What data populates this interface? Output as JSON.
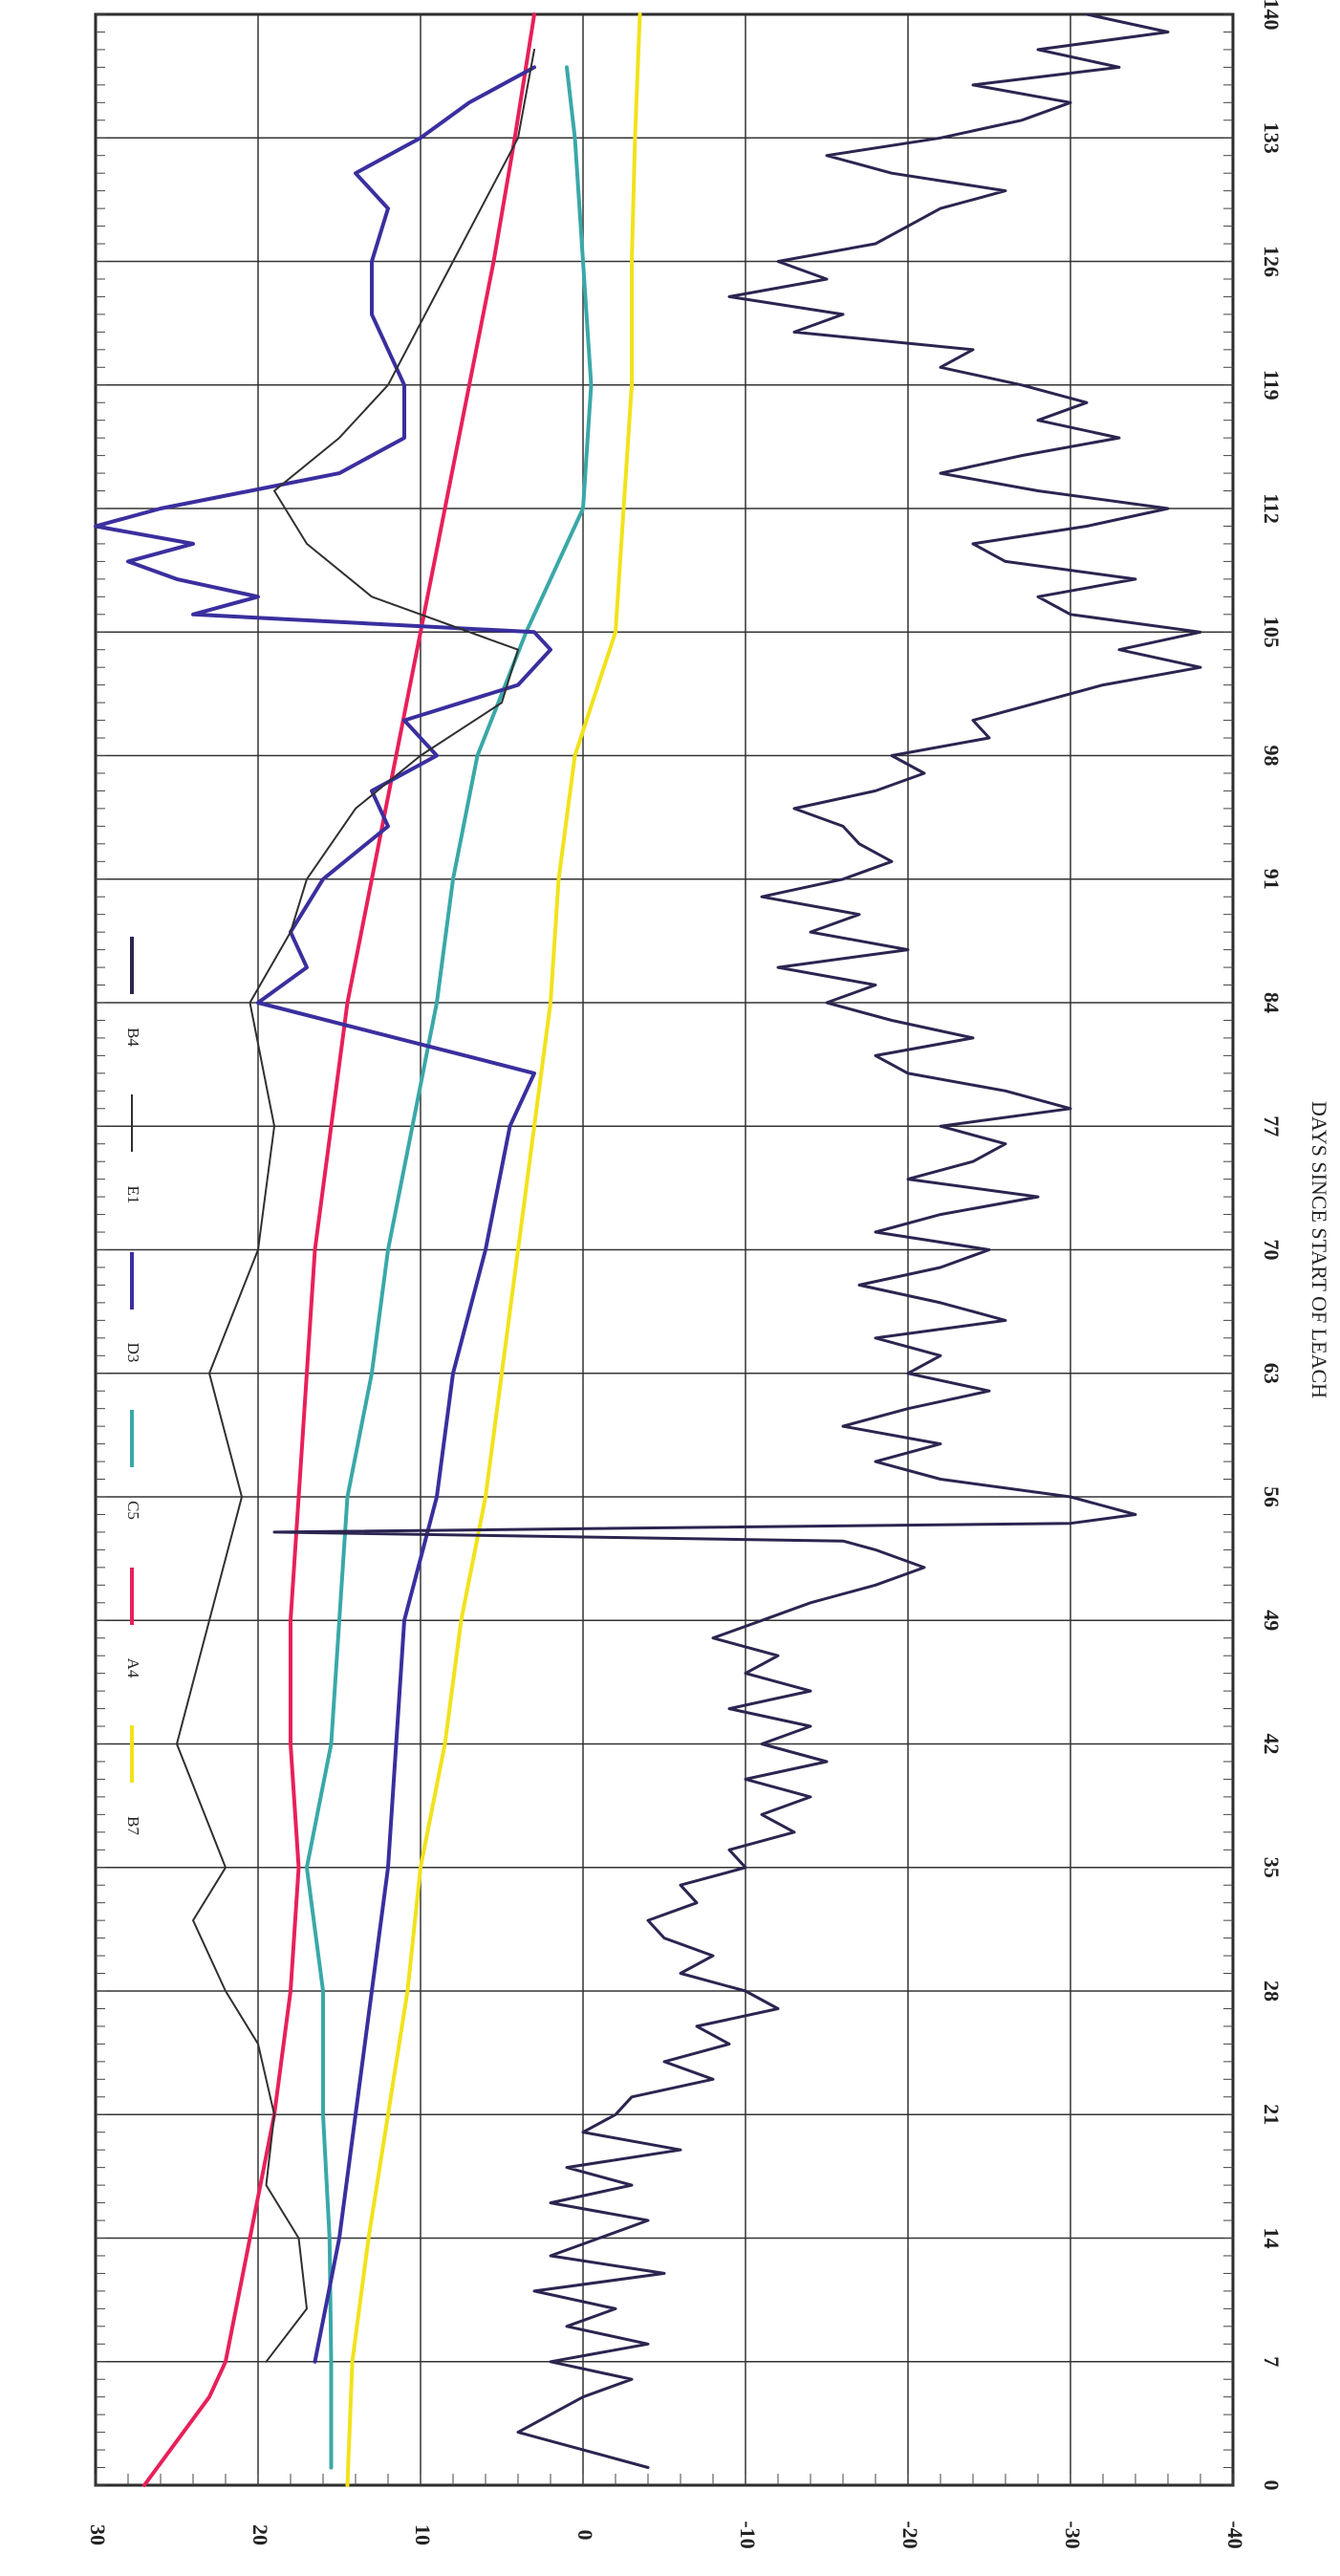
{
  "chart_data": {
    "type": "line",
    "title": "",
    "xlabel": "DAYS SINCE START OF LEACH",
    "ylabel": "",
    "xlim": [
      0,
      140
    ],
    "ylim": [
      -40,
      30
    ],
    "x_ticks": [
      0,
      7,
      14,
      21,
      28,
      35,
      42,
      49,
      56,
      63,
      70,
      77,
      84,
      91,
      98,
      105,
      112,
      119,
      126,
      133,
      140
    ],
    "y_ticks": [
      30,
      20,
      10,
      0,
      -10,
      -20,
      -30,
      -40
    ],
    "grid": true,
    "orientation": "rotated-90-clockwise",
    "legend_position": "top-left",
    "series": [
      {
        "name": "B7",
        "color": "#f2e21a",
        "points": [
          [
            0,
            14.5
          ],
          [
            7,
            14.2
          ],
          [
            14,
            13.2
          ],
          [
            21,
            12
          ],
          [
            28,
            10.8
          ],
          [
            35,
            10
          ],
          [
            42,
            8.5
          ],
          [
            49,
            7.5
          ],
          [
            56,
            6
          ],
          [
            63,
            5
          ],
          [
            70,
            4
          ],
          [
            77,
            3
          ],
          [
            84,
            2
          ],
          [
            91,
            1.5
          ],
          [
            98,
            0.5
          ],
          [
            105,
            -2
          ],
          [
            112,
            -2.5
          ],
          [
            119,
            -3
          ],
          [
            126,
            -3
          ],
          [
            133,
            -3.2
          ],
          [
            140,
            -3.5
          ]
        ]
      },
      {
        "name": "A4",
        "color": "#e8205a",
        "points": [
          [
            0,
            27
          ],
          [
            5,
            23
          ],
          [
            7,
            22
          ],
          [
            14,
            20.5
          ],
          [
            21,
            19
          ],
          [
            28,
            18
          ],
          [
            35,
            17.5
          ],
          [
            42,
            18
          ],
          [
            49,
            18
          ],
          [
            56,
            17.5
          ],
          [
            63,
            17
          ],
          [
            70,
            16.5
          ],
          [
            77,
            15.5
          ],
          [
            84,
            14.5
          ],
          [
            91,
            13
          ],
          [
            98,
            11.5
          ],
          [
            105,
            10
          ],
          [
            112,
            8.5
          ],
          [
            119,
            7
          ],
          [
            126,
            5.5
          ],
          [
            133,
            4.2
          ],
          [
            140,
            3
          ]
        ]
      },
      {
        "name": "C5",
        "color": "#3aa8a8",
        "points": [
          [
            1,
            15.5
          ],
          [
            7,
            15.5
          ],
          [
            14,
            15.6
          ],
          [
            21,
            16
          ],
          [
            28,
            16
          ],
          [
            35,
            17
          ],
          [
            42,
            15.5
          ],
          [
            49,
            15
          ],
          [
            56,
            14.5
          ],
          [
            63,
            13
          ],
          [
            70,
            12
          ],
          [
            77,
            10.5
          ],
          [
            84,
            9
          ],
          [
            91,
            8
          ],
          [
            98,
            6.5
          ],
          [
            105,
            3.5
          ],
          [
            112,
            0
          ],
          [
            119,
            -0.5
          ],
          [
            126,
            0
          ],
          [
            133,
            0.5
          ],
          [
            137,
            1
          ]
        ]
      },
      {
        "name": "D3",
        "color": "#3a2f9e",
        "points": [
          [
            7,
            16.5
          ],
          [
            14,
            15
          ],
          [
            21,
            14
          ],
          [
            28,
            13
          ],
          [
            35,
            12
          ],
          [
            42,
            11.5
          ],
          [
            49,
            11
          ],
          [
            56,
            9
          ],
          [
            63,
            8
          ],
          [
            70,
            6
          ],
          [
            77,
            4.5
          ],
          [
            80,
            3
          ],
          [
            84,
            20
          ],
          [
            86,
            17
          ],
          [
            88,
            18
          ],
          [
            91,
            16
          ],
          [
            94,
            12
          ],
          [
            96,
            13
          ],
          [
            98,
            9
          ],
          [
            100,
            11
          ],
          [
            102,
            4
          ],
          [
            104,
            2
          ],
          [
            105,
            3
          ],
          [
            106,
            24
          ],
          [
            107,
            20
          ],
          [
            108,
            25
          ],
          [
            109,
            28
          ],
          [
            110,
            24
          ],
          [
            111,
            30
          ],
          [
            112,
            26
          ],
          [
            114,
            15
          ],
          [
            116,
            11
          ],
          [
            119,
            11
          ],
          [
            123,
            13
          ],
          [
            126,
            13
          ],
          [
            129,
            12
          ],
          [
            131,
            14
          ],
          [
            133,
            10
          ],
          [
            135,
            7
          ],
          [
            137,
            3
          ]
        ]
      },
      {
        "name": "E1",
        "color": "#303030",
        "points": [
          [
            7,
            19.5
          ],
          [
            10,
            17
          ],
          [
            14,
            17.5
          ],
          [
            17,
            19.5
          ],
          [
            21,
            19
          ],
          [
            25,
            20
          ],
          [
            28,
            22
          ],
          [
            32,
            24
          ],
          [
            35,
            22
          ],
          [
            42,
            25
          ],
          [
            49,
            23
          ],
          [
            56,
            21
          ],
          [
            63,
            23
          ],
          [
            70,
            20
          ],
          [
            77,
            19
          ],
          [
            84,
            20.5
          ],
          [
            88,
            18
          ],
          [
            91,
            17
          ],
          [
            95,
            14
          ],
          [
            98,
            10
          ],
          [
            101,
            5
          ],
          [
            104,
            4
          ],
          [
            107,
            13
          ],
          [
            110,
            17
          ],
          [
            113,
            19
          ],
          [
            116,
            15
          ],
          [
            119,
            12
          ],
          [
            126,
            8
          ],
          [
            133,
            4
          ],
          [
            138,
            3
          ]
        ]
      },
      {
        "name": "B4",
        "color": "#2b2550",
        "points": [
          [
            1,
            -4
          ],
          [
            3,
            4
          ],
          [
            5,
            0
          ],
          [
            6,
            -3
          ],
          [
            7,
            2
          ],
          [
            8,
            -4
          ],
          [
            9,
            1
          ],
          [
            10,
            -2
          ],
          [
            11,
            3
          ],
          [
            12,
            -5
          ],
          [
            13,
            2
          ],
          [
            14,
            -1
          ],
          [
            15,
            -4
          ],
          [
            16,
            2
          ],
          [
            17,
            -3
          ],
          [
            18,
            1
          ],
          [
            19,
            -6
          ],
          [
            20,
            0
          ],
          [
            21,
            -2
          ],
          [
            22,
            -3
          ],
          [
            23,
            -8
          ],
          [
            24,
            -5
          ],
          [
            25,
            -9
          ],
          [
            26,
            -7
          ],
          [
            27,
            -12
          ],
          [
            28,
            -10
          ],
          [
            29,
            -6
          ],
          [
            30,
            -8
          ],
          [
            31,
            -5
          ],
          [
            32,
            -4
          ],
          [
            33,
            -7
          ],
          [
            34,
            -6
          ],
          [
            35,
            -10
          ],
          [
            36,
            -9
          ],
          [
            37,
            -13
          ],
          [
            38,
            -11
          ],
          [
            39,
            -14
          ],
          [
            40,
            -10
          ],
          [
            41,
            -15
          ],
          [
            42,
            -11
          ],
          [
            43,
            -14
          ],
          [
            44,
            -9
          ],
          [
            45,
            -14
          ],
          [
            46,
            -10
          ],
          [
            47,
            -12
          ],
          [
            48,
            -8
          ],
          [
            49,
            -11
          ],
          [
            50,
            -14
          ],
          [
            51,
            -18
          ],
          [
            52,
            -21
          ],
          [
            53,
            -18
          ],
          [
            53.5,
            -16
          ],
          [
            54,
            19
          ],
          [
            54.5,
            -30
          ],
          [
            55,
            -34
          ],
          [
            56,
            -30
          ],
          [
            57,
            -22
          ],
          [
            58,
            -18
          ],
          [
            59,
            -22
          ],
          [
            60,
            -16
          ],
          [
            61,
            -20
          ],
          [
            62,
            -25
          ],
          [
            63,
            -20
          ],
          [
            64,
            -22
          ],
          [
            65,
            -18
          ],
          [
            66,
            -26
          ],
          [
            67,
            -22
          ],
          [
            68,
            -17
          ],
          [
            69,
            -22
          ],
          [
            70,
            -25
          ],
          [
            71,
            -18
          ],
          [
            72,
            -22
          ],
          [
            73,
            -28
          ],
          [
            74,
            -20
          ],
          [
            75,
            -24
          ],
          [
            76,
            -26
          ],
          [
            77,
            -22
          ],
          [
            78,
            -30
          ],
          [
            79,
            -26
          ],
          [
            80,
            -20
          ],
          [
            81,
            -18
          ],
          [
            82,
            -24
          ],
          [
            83,
            -19
          ],
          [
            84,
            -15
          ],
          [
            85,
            -18
          ],
          [
            86,
            -12
          ],
          [
            87,
            -20
          ],
          [
            88,
            -14
          ],
          [
            89,
            -17
          ],
          [
            90,
            -11
          ],
          [
            91,
            -16
          ],
          [
            92,
            -19
          ],
          [
            93,
            -17
          ],
          [
            94,
            -16
          ],
          [
            95,
            -13
          ],
          [
            96,
            -18
          ],
          [
            97,
            -21
          ],
          [
            98,
            -19
          ],
          [
            99,
            -25
          ],
          [
            100,
            -24
          ],
          [
            101,
            -28
          ],
          [
            102,
            -32
          ],
          [
            103,
            -38
          ],
          [
            104,
            -33
          ],
          [
            105,
            -38
          ],
          [
            106,
            -30
          ],
          [
            107,
            -28
          ],
          [
            108,
            -34
          ],
          [
            109,
            -26
          ],
          [
            110,
            -24
          ],
          [
            111,
            -31
          ],
          [
            112,
            -36
          ],
          [
            113,
            -28
          ],
          [
            114,
            -22
          ],
          [
            115,
            -27
          ],
          [
            116,
            -33
          ],
          [
            117,
            -28
          ],
          [
            118,
            -31
          ],
          [
            119,
            -27
          ],
          [
            120,
            -22
          ],
          [
            121,
            -24
          ],
          [
            122,
            -13
          ],
          [
            123,
            -16
          ],
          [
            124,
            -9
          ],
          [
            125,
            -15
          ],
          [
            126,
            -12
          ],
          [
            127,
            -18
          ],
          [
            128,
            -20
          ],
          [
            129,
            -22
          ],
          [
            130,
            -26
          ],
          [
            131,
            -19
          ],
          [
            132,
            -15
          ],
          [
            133,
            -22
          ],
          [
            134,
            -27
          ],
          [
            135,
            -30
          ],
          [
            136,
            -24
          ],
          [
            137,
            -33
          ],
          [
            138,
            -28
          ],
          [
            139,
            -36
          ],
          [
            140,
            -31
          ]
        ]
      }
    ]
  }
}
